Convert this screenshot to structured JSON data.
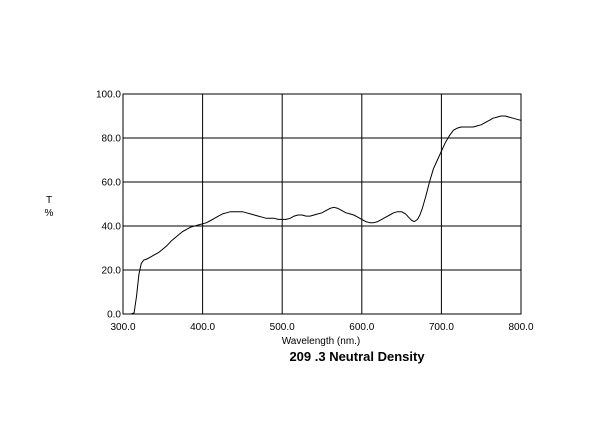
{
  "chart_data": {
    "type": "line",
    "title": "209 .3 Neutral Density",
    "xlabel": "Wavelength (nm.)",
    "ylabel_top": "T",
    "ylabel_bottom": "%",
    "xlim": [
      300,
      800
    ],
    "ylim": [
      0,
      100
    ],
    "x_ticks": [
      300,
      400,
      500,
      600,
      700,
      800
    ],
    "y_ticks": [
      0,
      20,
      40,
      60,
      80,
      100
    ],
    "x_tick_labels": [
      "300.0",
      "400.0",
      "500.0",
      "600.0",
      "700.0",
      "800.0"
    ],
    "y_tick_labels": [
      "0.0",
      "20.0",
      "40.0",
      "60.0",
      "80.0",
      "100.0"
    ],
    "grid": true,
    "series": [
      {
        "color": "#000000",
        "x": [
          300,
          310,
          314,
          317,
          320,
          323,
          326,
          330,
          335,
          340,
          345,
          350,
          355,
          360,
          365,
          370,
          375,
          380,
          385,
          390,
          395,
          400,
          405,
          410,
          415,
          420,
          425,
          430,
          435,
          440,
          445,
          450,
          455,
          460,
          465,
          470,
          475,
          480,
          485,
          490,
          495,
          500,
          505,
          510,
          515,
          520,
          525,
          530,
          535,
          540,
          545,
          550,
          555,
          560,
          565,
          570,
          575,
          580,
          585,
          590,
          595,
          600,
          605,
          610,
          615,
          620,
          625,
          630,
          635,
          640,
          645,
          650,
          655,
          660,
          663,
          666,
          670,
          673,
          676,
          680,
          685,
          690,
          695,
          700,
          705,
          710,
          715,
          720,
          725,
          730,
          735,
          740,
          745,
          750,
          755,
          760,
          765,
          770,
          775,
          780,
          785,
          790,
          795,
          800
        ],
        "y": [
          0.0,
          0.0,
          0.5,
          8.0,
          18.0,
          23.0,
          24.5,
          25.0,
          26.0,
          27.0,
          28.0,
          29.5,
          31.0,
          33.0,
          34.5,
          36.0,
          37.5,
          38.5,
          39.5,
          40.0,
          40.5,
          41.0,
          41.5,
          42.5,
          43.5,
          44.5,
          45.5,
          46.0,
          46.5,
          46.5,
          46.5,
          46.5,
          46.0,
          45.5,
          45.0,
          44.5,
          44.0,
          43.5,
          43.5,
          43.5,
          43.0,
          43.0,
          43.0,
          43.5,
          44.5,
          45.0,
          45.0,
          44.5,
          44.5,
          45.0,
          45.5,
          46.0,
          47.0,
          48.0,
          48.5,
          48.0,
          47.0,
          46.0,
          45.5,
          45.0,
          44.0,
          43.0,
          42.0,
          41.5,
          41.5,
          42.0,
          43.0,
          44.0,
          45.0,
          46.0,
          46.5,
          46.5,
          45.5,
          43.5,
          42.5,
          42.0,
          43.0,
          45.0,
          48.0,
          53.0,
          60.0,
          66.0,
          70.0,
          74.0,
          78.0,
          81.0,
          83.5,
          84.5,
          85.0,
          85.0,
          85.0,
          85.0,
          85.5,
          86.0,
          87.0,
          88.0,
          89.0,
          89.5,
          90.0,
          90.0,
          89.5,
          89.0,
          88.5,
          88.0
        ]
      }
    ]
  }
}
